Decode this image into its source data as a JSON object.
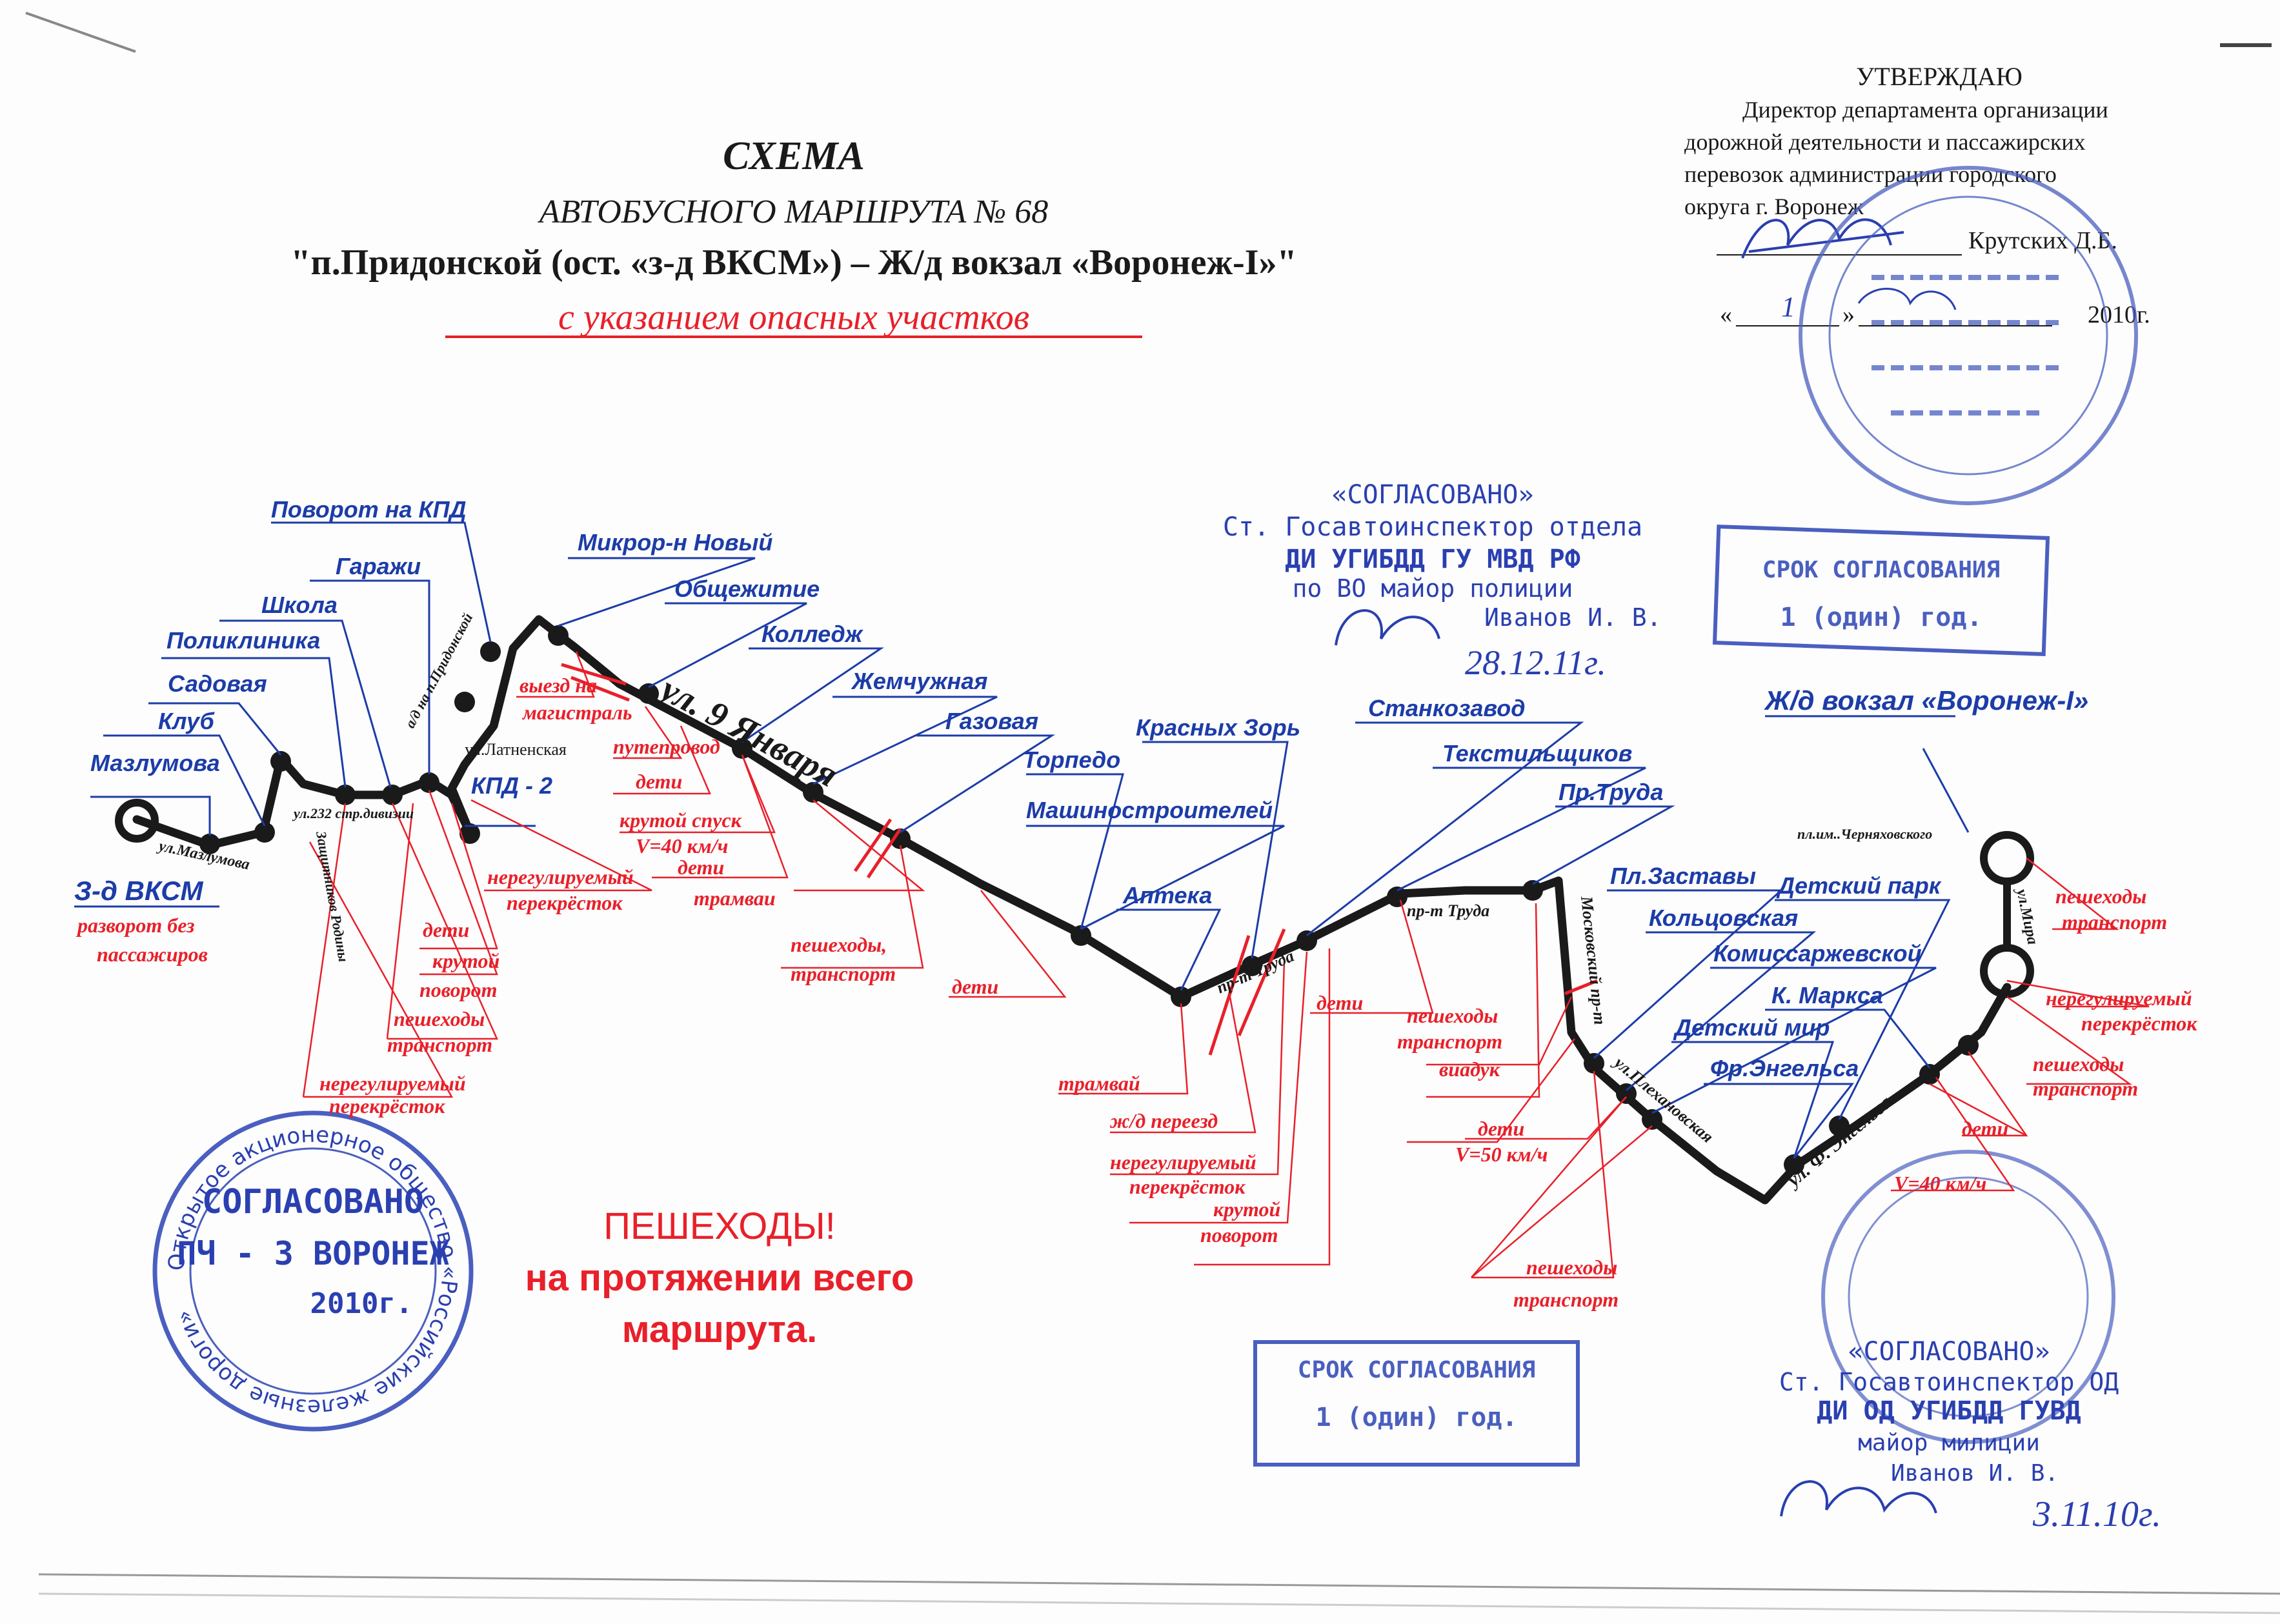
{
  "header": {
    "title": "СХЕМА",
    "subtitle": "АВТОБУСНОГО МАРШРУТА № 68",
    "route_name": "\"п.Придонской (ост. «з-д ВКСМ») – Ж/д вокзал «Воронеж-I»\"",
    "subtitle_red": "с указанием опасных участков"
  },
  "approval": {
    "heading": "УТВЕРЖДАЮ",
    "line1": "Директор департамента   организации",
    "line2": "дорожной  деятельности  и  пассажирских",
    "line3": "перевозок    администрации  городского",
    "line4": "округа г. Воронеж",
    "signer": "Крутских Д.Б.",
    "date_prefix": "«",
    "date_day": "1",
    "date_mid": "»",
    "date_year": "2010г."
  },
  "stops": {
    "s_mazlumova": "Мазлумова",
    "s_klub": "Клуб",
    "s_sadovaya": "Садовая",
    "s_poliklinika": "Поликлиника",
    "s_shkola": "Школа",
    "s_garazhi": "Гаражи",
    "s_povorot_kpd": "Поворот на КПД",
    "s_mikror": "Микрор-н Новый",
    "s_obshch": "Общежитие",
    "s_kolledzh": "Колледж",
    "s_zhemch": "Жемчужная",
    "s_gazovaya": "Газовая",
    "s_torpedo": "Торпедо",
    "s_mashin": "Машиностроителей",
    "s_krasnyh": "Красных Зорь",
    "s_apteka": "Аптека",
    "s_stankozavod": "Станкозавод",
    "s_textil": "Текстильщиков",
    "s_prtruda": "Пр.Труда",
    "s_plzast": "Пл.Заставы",
    "s_kolc": "Кольцовская",
    "s_detpark": "Детский парк",
    "s_komiss": "Комиссаржевской",
    "s_kmarksa": "К. Маркса",
    "s_detmir": "Детский мир",
    "s_engelsa": "Фр.Энгельса",
    "s_kpd2": "КПД - 2",
    "s_zavod": "З-д ВКСМ",
    "s_terminal": "Ж/д вокзал «Воронеж-I»"
  },
  "streets": {
    "st_mazlumova": "ул.Мазлумова",
    "st_232": "ул.232 стр.дивизии",
    "st_zashch": "Защитников Родины",
    "st_latnenskaya": "ул.Латненская",
    "st_pridon": "а/д на п.Придонской",
    "st_9yanv": "ул.  9  Января",
    "st_prtruda1": "пр-т Труда",
    "st_prtruda2": "пр-т Труда",
    "st_moskovsky": "Московский пр-т",
    "st_plekh": "ул.Плехановская",
    "st_engelsa": "ул. Ф. Энгельса",
    "st_mira": "ул.Мира",
    "st_chernyah": "пл.им..Черняховского"
  },
  "dangers": {
    "d_razvorot": "разворот без",
    "d_razvorot2": "пассажиров",
    "d_deti1": "дети",
    "d_krutoy1": "крутой",
    "d_povorot1": "поворот",
    "d_peshehody1": "пешеходы",
    "d_transport1": "транспорт",
    "d_nereg1": "нерегулируемый",
    "d_perekr1": "перекрёсток",
    "d_nereg2": "нерегулируемый",
    "d_perekr2": "перекрёсток",
    "d_vyezd": "выезд на",
    "d_magistral": "магистраль",
    "d_putep": "путепровод",
    "d_deti2": "дети",
    "d_spusk": "крутой спуск",
    "d_v40": "V=40 км/ч",
    "d_deti3": "дети",
    "d_tramvai1": "трамваи",
    "d_peshtr": "пешеходы,",
    "d_peshtr2": "транспорт",
    "d_deti4": "дети",
    "d_tramvai2": "трамвай",
    "d_zhd": "ж/д переезд",
    "d_nereg3": "нерегулируемый",
    "d_perekr3": "перекрёсток",
    "d_krutoy2": "крутой",
    "d_povorot2": "поворот",
    "d_deti5": "дети",
    "d_pesh5": "пешеходы",
    "d_tr5": "транспорт",
    "d_viaduk": "виадук",
    "d_deti6": "дети",
    "d_v50": "V=50 км/ч",
    "d_pesh6": "пешеходы",
    "d_tr6": "транспорт",
    "d_pesh7": "пешеходы",
    "d_tr7": "транспорт",
    "d_nereg4": "нерегулируемый",
    "d_perekr4": "перекрёсток",
    "d_pesh8": "пешеходы",
    "d_tr8": "транспорт",
    "d_deti7": "дети",
    "d_v40b": "V=40 км/ч"
  },
  "warning": {
    "line1": "ПЕШЕХОДЫ!",
    "line2": "на протяжении всего",
    "line3": "маршрута."
  },
  "stamps": {
    "soglasovano_top": "«СОГЛАСОВАНО»",
    "gos_top1": "Ст. Госавтоинспектор отдела",
    "gos_top2": "ДИ УГИБДД ГУ МВД РФ",
    "gos_top3": "по ВО   майор полиции",
    "gos_top4": "Иванов И. В.",
    "date_top": "28.12.11г.",
    "srok1_line1": "СРОК СОГЛАСОВАНИЯ",
    "srok1_line2": "1 (один) год.",
    "srok2_line1": "СРОК СОГЛАСОВАНИЯ",
    "srok2_line2": "1 (один) год.",
    "soglasovano_bottom": "«СОГЛАСОВАНО»",
    "gos_bot1": "Ст. Госавтоинспектор ОД",
    "gos_bot2": "ДИ ОД  УГИБДД ГУВД",
    "gos_bot3": "майор милиции",
    "gos_bot4": "Иванов И. В.",
    "date_bottom": "3.11.10г.",
    "rzd_line1": "СОГЛАСОВАНО",
    "rzd_line2": "ПЧ - 3 ВОРОНЕЖ",
    "rzd_line3": "2010г.",
    "rzd_ring": "Открытое акционерное общество «Российские железные дороги»"
  },
  "colors": {
    "blue": "#1c3ca8",
    "red": "#e8202a",
    "black": "#1a1a1a",
    "stamp_blue": "#4a5fbf"
  }
}
